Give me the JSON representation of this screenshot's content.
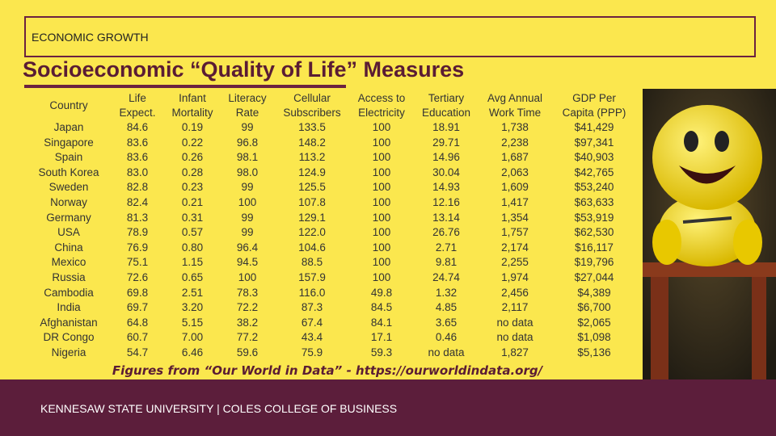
{
  "header": {
    "label": "ECONOMIC GROWTH",
    "title": "Socioeconomic “Quality of Life” Measures"
  },
  "table": {
    "columns": [
      [
        "Country"
      ],
      [
        "Life",
        "Expect."
      ],
      [
        "Infant",
        "Mortality"
      ],
      [
        "Literacy",
        "Rate"
      ],
      [
        "Cellular",
        "Subscribers"
      ],
      [
        "Access to",
        "Electricity"
      ],
      [
        "Tertiary",
        "Education"
      ],
      [
        "Avg Annual",
        "Work Time"
      ],
      [
        "GDP Per",
        "Capita (PPP)"
      ]
    ],
    "rows": [
      [
        "Japan",
        "84.6",
        "0.19",
        "99",
        "133.5",
        "100",
        "18.91",
        "1,738",
        "$41,429"
      ],
      [
        "Singapore",
        "83.6",
        "0.22",
        "96.8",
        "148.2",
        "100",
        "29.71",
        "2,238",
        "$97,341"
      ],
      [
        "Spain",
        "83.6",
        "0.26",
        "98.1",
        "113.2",
        "100",
        "14.96",
        "1,687",
        "$40,903"
      ],
      [
        "South Korea",
        "83.0",
        "0.28",
        "98.0",
        "124.9",
        "100",
        "30.04",
        "2,063",
        "$42,765"
      ],
      [
        "Sweden",
        "82.8",
        "0.23",
        "99",
        "125.5",
        "100",
        "14.93",
        "1,609",
        "$53,240"
      ],
      [
        "Norway",
        "82.4",
        "0.21",
        "100",
        "107.8",
        "100",
        "12.16",
        "1,417",
        "$63,633"
      ],
      [
        "Germany",
        "81.3",
        "0.31",
        "99",
        "129.1",
        "100",
        "13.14",
        "1,354",
        "$53,919"
      ],
      [
        "USA",
        "78.9",
        "0.57",
        "99",
        "122.0",
        "100",
        "26.76",
        "1,757",
        "$62,530"
      ],
      [
        "China",
        "76.9",
        "0.80",
        "96.4",
        "104.6",
        "100",
        "2.71",
        "2,174",
        "$16,117"
      ],
      [
        "Mexico",
        "75.1",
        "1.15",
        "94.5",
        "88.5",
        "100",
        "9.81",
        "2,255",
        "$19,796"
      ],
      [
        "Russia",
        "72.6",
        "0.65",
        "100",
        "157.9",
        "100",
        "24.74",
        "1,974",
        "$27,044"
      ],
      [
        "Cambodia",
        "69.8",
        "2.51",
        "78.3",
        "116.0",
        "49.8",
        "1.32",
        "2,456",
        "$4,389"
      ],
      [
        "India",
        "69.7",
        "3.20",
        "72.2",
        "87.3",
        "84.5",
        "4.85",
        "2,117",
        "$6,700"
      ],
      [
        "Afghanistan",
        "64.8",
        "5.15",
        "38.2",
        "67.4",
        "84.1",
        "3.65",
        "no data",
        "$2,065"
      ],
      [
        "DR Congo",
        "60.7",
        "7.00",
        "77.2",
        "43.4",
        "17.1",
        "0.46",
        "no data",
        "$1,098"
      ],
      [
        "Nigeria",
        "54.7",
        "6.46",
        "59.6",
        "75.9",
        "59.3",
        "no data",
        "1,827",
        "$5,136"
      ]
    ]
  },
  "note": "Figures from “Our World in Data” - https://ourworldindata.org/",
  "footer": "KENNESAW STATE UNIVERSITY | COLES COLLEGE OF BUSINESS"
}
